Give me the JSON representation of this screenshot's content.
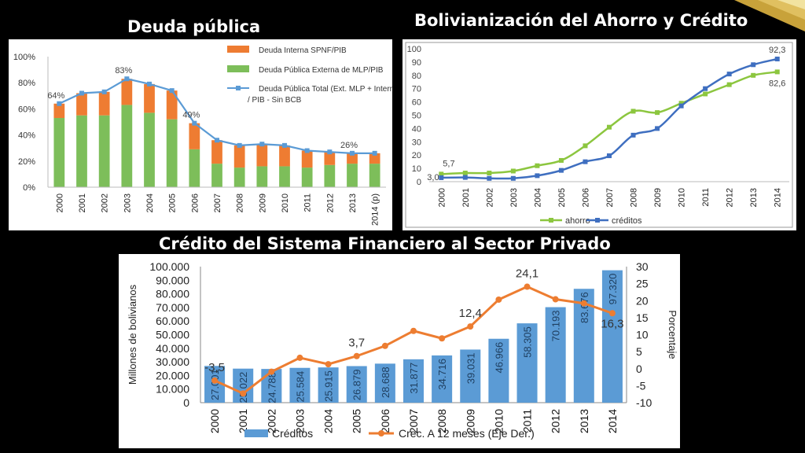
{
  "slide": {
    "title_left": "Deuda pública",
    "title_right": "Bolivianización del Ahorro y Crédito",
    "title_bottom": "Crédito del Sistema Financiero al Sector Privado"
  },
  "chart_data": [
    {
      "type": "bar",
      "stacked": true,
      "categories": [
        "2000",
        "2001",
        "2002",
        "2003",
        "2004",
        "2005",
        "2006",
        "2007",
        "2008",
        "2009",
        "2010",
        "2011",
        "2012",
        "2013",
        "2014 (p)"
      ],
      "series": [
        {
          "name": "Deuda Externa de MLP/PIB",
          "legend": "Deuda Pública Externa de MLP/PIB",
          "kind": "bar",
          "color": "#7dbe5a",
          "values": [
            53,
            55,
            55,
            63,
            57,
            52,
            29,
            18,
            15,
            16,
            16,
            15,
            17,
            18,
            18
          ]
        },
        {
          "name": "Deuda Interna SPNF/PIB",
          "legend": "Deuda Interna SPNF/PIB",
          "kind": "bar",
          "color": "#ee7c32",
          "values": [
            11,
            17,
            18,
            20,
            22,
            22,
            20,
            18,
            17,
            17,
            16,
            13,
            10,
            8,
            8
          ]
        },
        {
          "name": "Total",
          "legend": "Deuda Pública Total (Ext. MLP + Interna) / PIB - Sin BCB",
          "kind": "line",
          "color": "#5b9bd5",
          "values": [
            64,
            72,
            73,
            83,
            79,
            74,
            49,
            36,
            32,
            33,
            32,
            28,
            27,
            26,
            26
          ]
        }
      ],
      "yticks": [
        "0%",
        "20%",
        "40%",
        "60%",
        "80%",
        "100%"
      ],
      "ylim": [
        0,
        100
      ],
      "data_labels": [
        {
          "index": 0,
          "text": "64%"
        },
        {
          "index": 3,
          "text": "83%"
        },
        {
          "index": 6,
          "text": "49%"
        },
        {
          "index": 13,
          "text": "26%"
        }
      ],
      "legend_position": "top-right"
    },
    {
      "type": "line",
      "categories": [
        "2000",
        "2001",
        "2002",
        "2003",
        "2004",
        "2005",
        "2006",
        "2007",
        "2008",
        "2009",
        "2010",
        "2011",
        "2012",
        "2013",
        "2014"
      ],
      "series": [
        {
          "name": "ahorro",
          "color": "#8cc63f",
          "values": [
            5.7,
            6.5,
            6.5,
            8,
            12,
            16,
            27,
            41,
            53,
            52,
            59,
            66,
            73,
            80,
            82.6
          ]
        },
        {
          "name": "créditos",
          "color": "#3f6fc0",
          "values": [
            3.0,
            3.2,
            2.5,
            2.5,
            4.5,
            8.5,
            15,
            19.5,
            35,
            40,
            57,
            70,
            81,
            88,
            92.3
          ]
        }
      ],
      "yticks": [
        "0",
        "10",
        "20",
        "30",
        "40",
        "50",
        "60",
        "70",
        "80",
        "90",
        "100"
      ],
      "ylim": [
        0,
        100
      ],
      "annotations": [
        {
          "series": 0,
          "index": 0,
          "text": "5,7"
        },
        {
          "series": 1,
          "index": 0,
          "text": "3,0"
        },
        {
          "series": 1,
          "index": 14,
          "text": "92,3"
        },
        {
          "series": 0,
          "index": 14,
          "text": "82,6"
        }
      ],
      "legend_position": "bottom"
    },
    {
      "type": "bar",
      "categories": [
        "2000",
        "2001",
        "2002",
        "2003",
        "2004",
        "2005",
        "2006",
        "2007",
        "2008",
        "2009",
        "2010",
        "2011",
        "2012",
        "2013",
        "2014"
      ],
      "series": [
        {
          "name": "Créditos",
          "kind": "bar",
          "axis": "left",
          "color": "#5b9bd5",
          "values": [
            27001,
            25022,
            24788,
            25584,
            25915,
            26879,
            28688,
            31877,
            34716,
            39031,
            46966,
            58305,
            70193,
            83676,
            97320
          ]
        },
        {
          "name": "Crec. A 12 meses (Eje Der.)",
          "kind": "line",
          "axis": "right",
          "color": "#ed7d31",
          "values": [
            -3.5,
            -7.3,
            -0.9,
            3.2,
            1.3,
            3.7,
            6.7,
            11.1,
            8.9,
            12.4,
            20.3,
            24.1,
            20.4,
            19.2,
            16.3
          ]
        }
      ],
      "bar_labels": [
        "27.001",
        "25.022",
        "24.788",
        "25.584",
        "25.915",
        "26.879",
        "28.688",
        "31.877",
        "34.716",
        "39.031",
        "46.966",
        "58.305",
        "70.193",
        "83.676",
        "97.320"
      ],
      "ylabel": "Millones de bolivianos",
      "y2label": "Porcentaje",
      "yticks": [
        "0",
        "10.000",
        "20.000",
        "30.000",
        "40.000",
        "50.000",
        "60.000",
        "70.000",
        "80.000",
        "90.000",
        "100.000"
      ],
      "ylim": [
        0,
        100000
      ],
      "y2ticks": [
        "-10",
        "-5",
        "0",
        "5",
        "10",
        "15",
        "20",
        "25",
        "30"
      ],
      "y2lim": [
        -10,
        30
      ],
      "annotations": [
        {
          "index": 0,
          "text": "-3,5"
        },
        {
          "index": 5,
          "text": "3,7"
        },
        {
          "index": 9,
          "text": "12,4"
        },
        {
          "index": 11,
          "text": "24,1"
        },
        {
          "index": 14,
          "text": "16,3"
        }
      ],
      "legend_position": "bottom"
    }
  ]
}
